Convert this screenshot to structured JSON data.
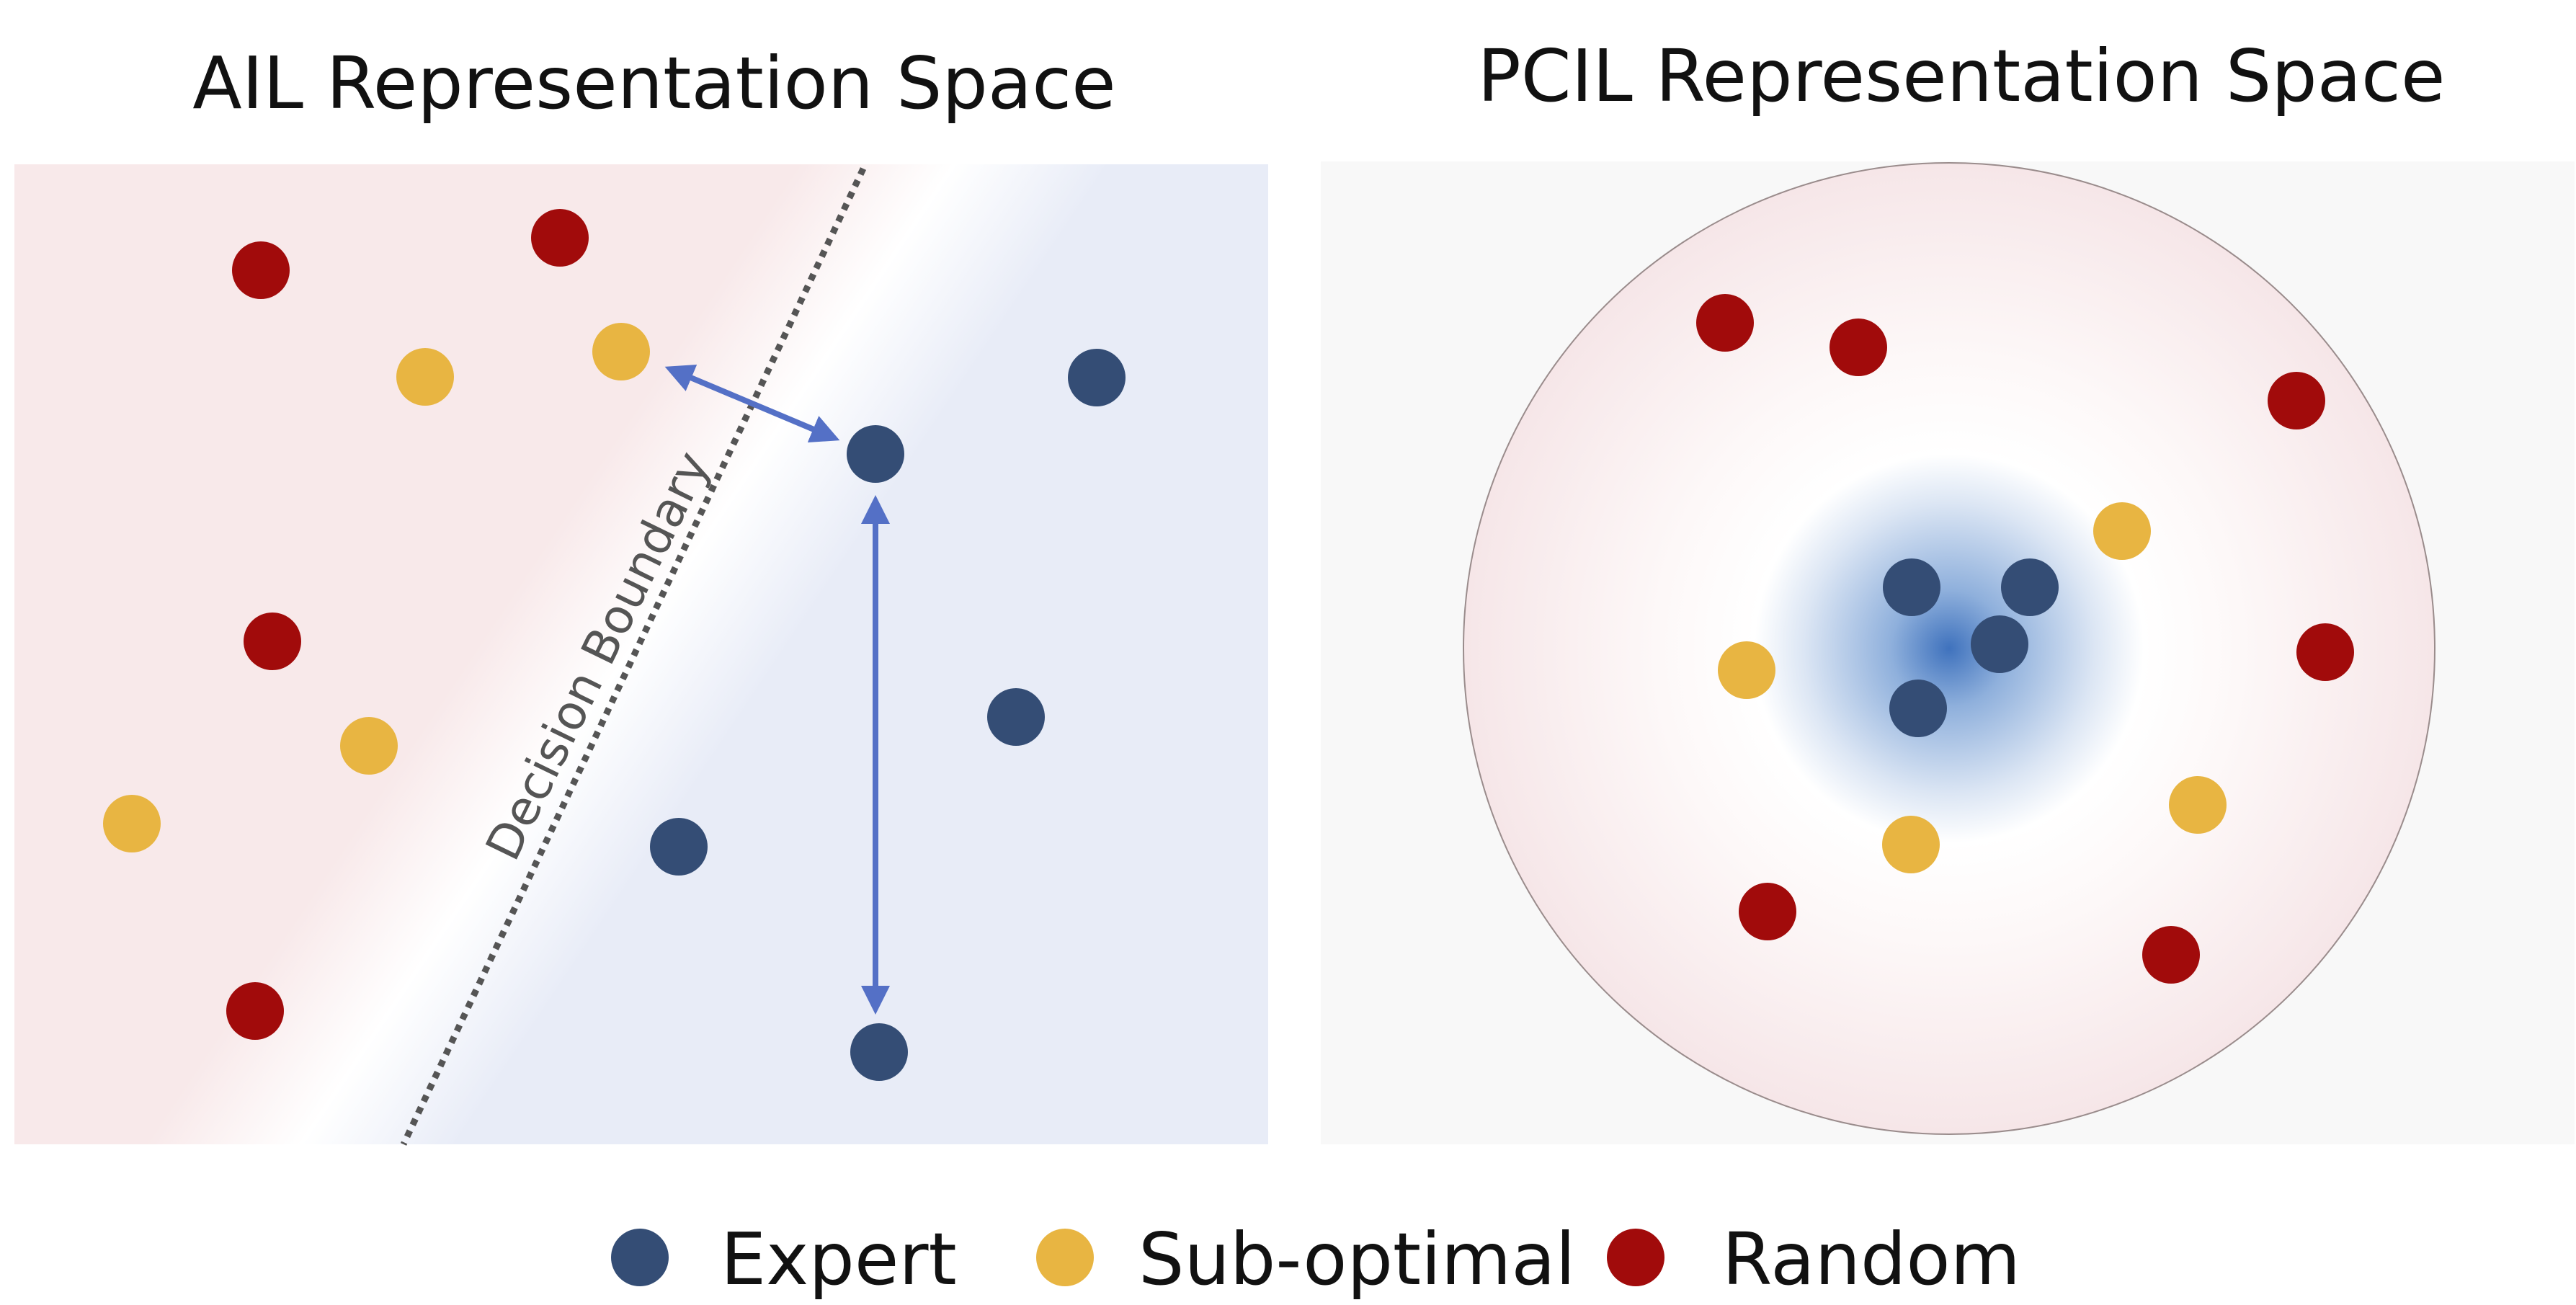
{
  "panels": {
    "left": {
      "title": "AIL Representation Space",
      "boundary_label": "Decision Boundary"
    },
    "right": {
      "title": "PCIL Representation Space"
    }
  },
  "legend": {
    "items": [
      {
        "label": "Expert",
        "color": "#344d75"
      },
      {
        "label": "Sub-optimal",
        "color": "#e8b542"
      },
      {
        "label": "Random",
        "color": "#a10b0b"
      }
    ]
  },
  "colors": {
    "expert": "#344d75",
    "suboptimal": "#e8b542",
    "random": "#a10b0b",
    "arrow": "#5470c6",
    "boundary": "#555555"
  }
}
